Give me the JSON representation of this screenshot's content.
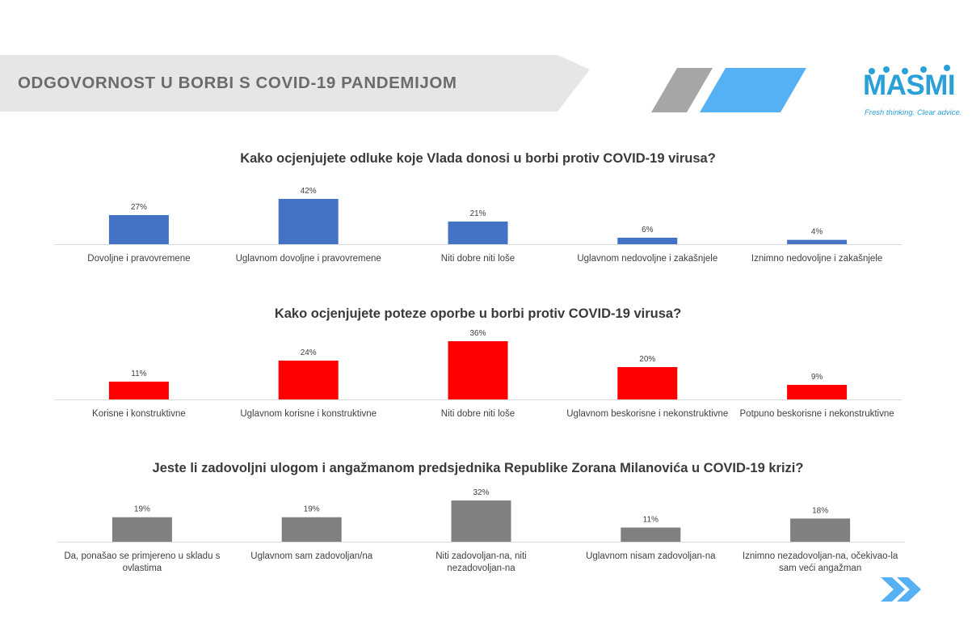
{
  "header": {
    "title": "ODGOVORNOST U BORBI S COVID-19 PANDEMIJOM",
    "band_color": "#e6e6e6",
    "stripe_colors": [
      "#a6a6a6",
      "#55b0f4"
    ]
  },
  "logo": {
    "name": "MASMI",
    "tagline": "Fresh thinking. Clear advice.",
    "color": "#2aa0d8"
  },
  "nav": {
    "icon": "double-chevron-right-icon",
    "color": "#55b0f4"
  },
  "chart_data": [
    {
      "type": "bar",
      "title": "Kako ocjenjujete odluke koje Vlada donosi u borbi protiv COVID-19 virusa?",
      "categories": [
        "Dovoljne i pravovremene",
        "Uglavnom dovoljne i pravovremene",
        "Niti dobre niti loše",
        "Uglavnom nedovoljne i zakašnjele",
        "Iznimno nedovoljne i zakašnjele"
      ],
      "values": [
        27,
        42,
        21,
        6,
        4
      ],
      "value_labels": [
        "27%",
        "42%",
        "21%",
        "6%",
        "4%"
      ],
      "unit": "%",
      "color": "#4472c4",
      "ylim": [
        0,
        42
      ]
    },
    {
      "type": "bar",
      "title": "Kako ocjenjujete poteze oporbe u borbi protiv COVID-19 virusa?",
      "categories": [
        "Korisne i konstruktivne",
        "Uglavnom korisne i konstruktivne",
        "Niti dobre niti loše",
        "Uglavnom beskorisne i nekonstruktivne",
        "Potpuno beskorisne i nekonstruktivne"
      ],
      "values": [
        11,
        24,
        36,
        20,
        9
      ],
      "value_labels": [
        "11%",
        "24%",
        "36%",
        "20%",
        "9%"
      ],
      "unit": "%",
      "color": "#ff0000",
      "ylim": [
        0,
        36
      ]
    },
    {
      "type": "bar",
      "title": "Jeste li zadovoljni ulogom i angažmanom predsjednika Republike Zorana Milanovića u COVID-19 krizi?",
      "categories": [
        "Da, ponašao se primjereno u skladu s ovlastima",
        "Uglavnom sam zadovoljan/na",
        "Niti zadovoljan-na, niti nezadovoljan-na",
        "Uglavnom nisam zadovoljan-na",
        "Iznimno nezadovoljan-na, očekivao-la sam veći angažman"
      ],
      "values": [
        19,
        19,
        32,
        11,
        18
      ],
      "value_labels": [
        "19%",
        "19%",
        "32%",
        "11%",
        "18%"
      ],
      "unit": "%",
      "color": "#808080",
      "ylim": [
        0,
        32
      ]
    }
  ]
}
